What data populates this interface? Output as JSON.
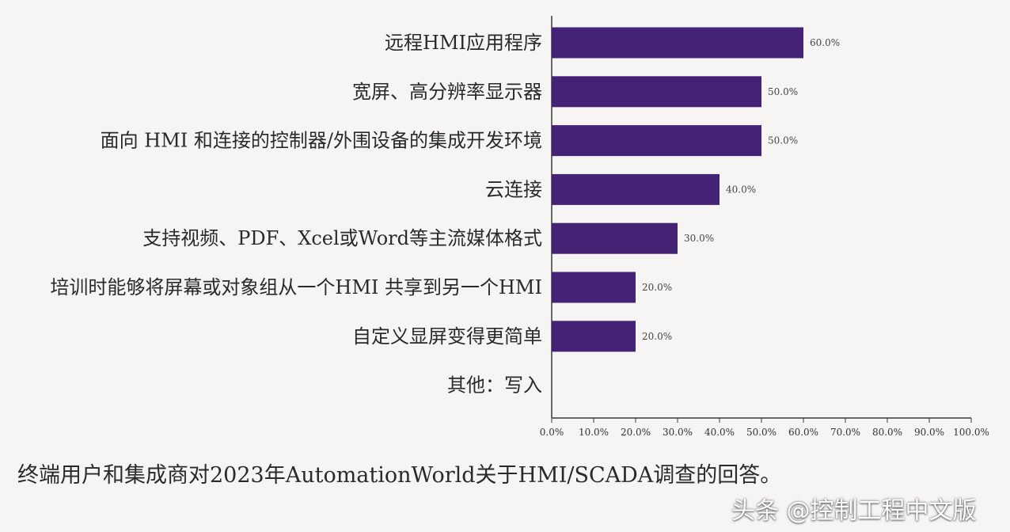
{
  "chart_data": {
    "type": "bar",
    "orientation": "horizontal",
    "categories": [
      "远程HMI应用程序",
      "宽屏、高分辨率显示器",
      "面向 HMI 和连接的控制器/外围设备的集成开发环境",
      "云连接",
      "支持视频、PDF、Xcel或Word等主流媒体格式",
      "培训时能够将屏幕或对象组从一个HMI 共享到另一个HMI",
      "自定义显屏变得更简单",
      "其他：写入"
    ],
    "values": [
      60.0,
      50.0,
      50.0,
      40.0,
      30.0,
      20.0,
      20.0,
      null
    ],
    "value_labels": [
      "60.0%",
      "50.0%",
      "50.0%",
      "40.0%",
      "30.0%",
      "20.0%",
      "20.0%",
      ""
    ],
    "xlim": [
      0,
      100
    ],
    "x_ticks": [
      "0.0%",
      "10.0%",
      "20.0%",
      "30.0%",
      "40.0%",
      "50.0%",
      "60.0%",
      "70.0%",
      "80.0%",
      "90.0%",
      "100.0%"
    ],
    "grid": false,
    "legend": "none",
    "bar_color": "#442377"
  },
  "caption": "终端用户和集成商对2023年AutomationWorld关于HMI/SCADA调查的回答。",
  "watermark": "头条 @控制工程中文版"
}
